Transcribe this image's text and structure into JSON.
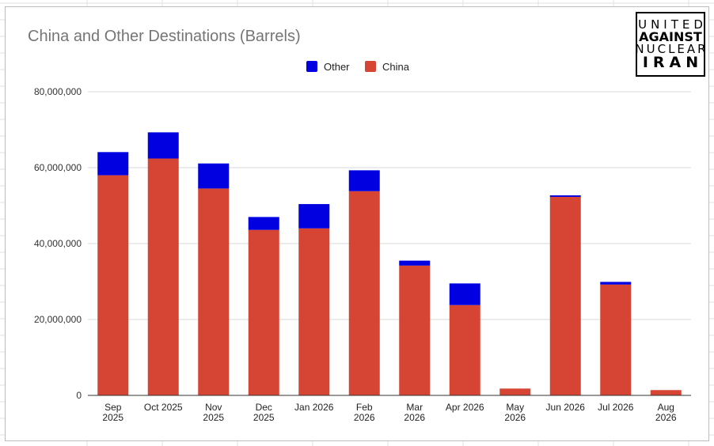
{
  "logo": {
    "lines": [
      "UNITED",
      "AGAINST",
      "NUCLEAR",
      "IRAN"
    ]
  },
  "chart_data": {
    "type": "bar",
    "stacked": true,
    "title": "China and Other Destinations (Barrels)",
    "xlabel": "",
    "ylabel": "",
    "categories": [
      [
        "Sep",
        "2025"
      ],
      [
        "Oct 2025"
      ],
      [
        "Nov",
        "2025"
      ],
      [
        "Dec",
        "2025"
      ],
      [
        "Jan 2026"
      ],
      [
        "Feb",
        "2026"
      ],
      [
        "Mar",
        "2026"
      ],
      [
        "Apr 2026"
      ],
      [
        "May",
        "2026"
      ],
      [
        "Jun 2026"
      ],
      [
        "Jul 2026"
      ],
      [
        "Aug",
        "2026"
      ]
    ],
    "series": [
      {
        "name": "China",
        "color": "#d64533",
        "values": [
          58000000,
          62400000,
          54500000,
          43600000,
          44000000,
          53800000,
          34200000,
          23800000,
          1800000,
          52300000,
          29200000,
          1400000
        ]
      },
      {
        "name": "Other",
        "color": "#0000e0",
        "values": [
          6100000,
          6900000,
          6600000,
          3400000,
          6400000,
          5500000,
          1300000,
          5700000,
          0,
          400000,
          700000,
          0
        ]
      }
    ],
    "legend": {
      "placement": "top",
      "order": [
        "Other",
        "China"
      ]
    },
    "ylim": [
      0,
      80000000
    ],
    "yticks": [
      {
        "value": 0,
        "label": "0"
      },
      {
        "value": 20000000,
        "label": "20,000,000"
      },
      {
        "value": 40000000,
        "label": "40,000,000"
      },
      {
        "value": 60000000,
        "label": "60,000,000"
      },
      {
        "value": 80000000,
        "label": "80,000,000"
      }
    ],
    "grid": true
  }
}
